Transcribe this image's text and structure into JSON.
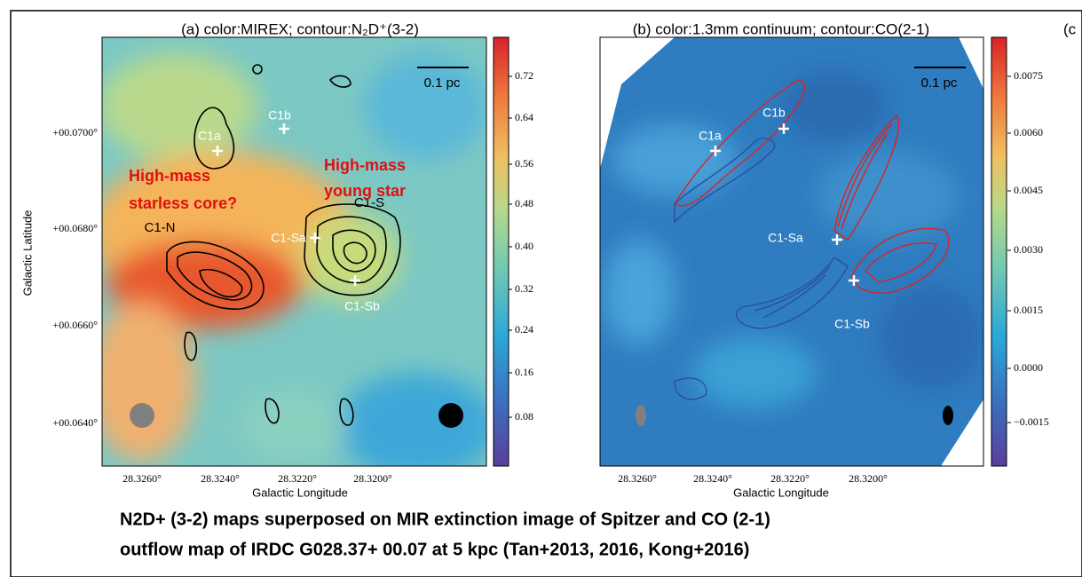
{
  "panels": [
    {
      "title": "(a) color:MIREX; contour:N₂D⁺(3-2)",
      "colorbar_ticks": [
        "0.72",
        "0.64",
        "0.56",
        "0.48",
        "0.40",
        "0.32",
        "0.24",
        "0.16",
        "0.08"
      ],
      "y_ticks": [
        "+00.0700°",
        "+00.0680°",
        "+00.0660°",
        "+00.0640°"
      ],
      "x_ticks": [
        "28.3260°",
        "28.3240°",
        "28.3220°",
        "28.3200°"
      ],
      "x_label": "Galactic Longitude",
      "y_label": "Galactic Latitude",
      "scale_bar": "0.1 pc",
      "labels": [
        "C1a",
        "C1b",
        "C1-N",
        "C1-Sa",
        "C1-Sb",
        "C1-S"
      ]
    },
    {
      "title": "(b) color:1.3mm continuum; contour:CO(2-1)",
      "colorbar_ticks": [
        "0.0075",
        "0.0060",
        "0.0045",
        "0.0030",
        "0.0015",
        "0.0000",
        "−0.0015"
      ],
      "x_ticks": [
        "28.3260°",
        "28.3240°",
        "28.3220°",
        "28.3200°"
      ],
      "x_label": "Galactic Longitude",
      "scale_bar": "0.1 pc",
      "labels": [
        "C1a",
        "C1b",
        "C1-Sa",
        "C1-Sb"
      ]
    }
  ],
  "next_panel_title": "(c",
  "annotations": [
    [
      "High-mass",
      "starless core?"
    ],
    [
      "High-mass",
      "young star"
    ]
  ],
  "caption": [
    "N2D+ (3-2) maps superposed on MIR extinction image of Spitzer and CO (2-1)",
    "outflow map of IRDC G028.37+ 00.07 at 5 kpc (Tan+2013, 2016, Kong+2016)"
  ]
}
